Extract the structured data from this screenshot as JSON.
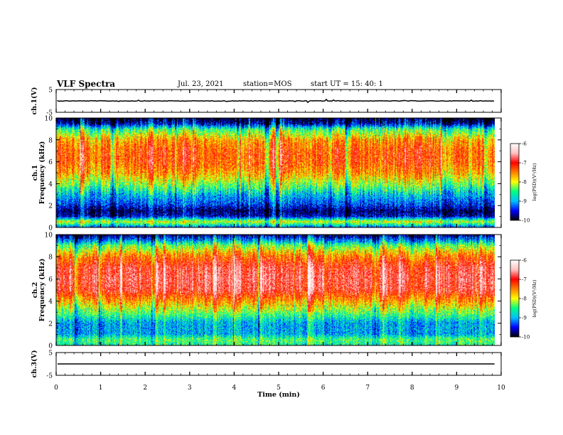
{
  "header": {
    "title": "VLF Spectra",
    "date": "Jul. 23, 2021",
    "station": "station=MOS",
    "start": "start UT = 15: 40: 1"
  },
  "colors": {
    "colormap": [
      "#000000",
      "#0000ff",
      "#00c0ff",
      "#00ff80",
      "#ffff00",
      "#ff8000",
      "#ff0000",
      "#ffc0c0",
      "#ffffff"
    ]
  },
  "chart_data": [
    {
      "type": "line",
      "id": "ch1-waveform",
      "ylabel": "ch.1(V)",
      "ylim": [
        -5,
        5
      ],
      "yticks": [
        "5",
        "-5"
      ],
      "xlim": [
        0,
        10
      ],
      "series": [
        {
          "values_description": "",
          "level": 0
        }
      ]
    },
    {
      "type": "heatmap",
      "id": "ch1-spectrogram",
      "ylabel": "ch.1\nFrequency (kHz)",
      "ylabel_lines": [
        "ch.1",
        "Frequency (kHz)"
      ],
      "ylim": [
        0,
        10
      ],
      "yticks": [
        "0",
        "2",
        "4",
        "6",
        "8",
        "10"
      ],
      "xlim": [
        0,
        10
      ],
      "data_end_min": 9.85,
      "colorbar": {
        "label": "log(PSD)(V²/Hz)",
        "range": [
          -10,
          -6
        ],
        "ticks": [
          "-6",
          "-7",
          "-8",
          "-9",
          "-10"
        ]
      },
      "profile": [
        {
          "f": 0.0,
          "v": -9.2
        },
        {
          "f": 0.5,
          "v": -8.0
        },
        {
          "f": 1.0,
          "v": -9.6
        },
        {
          "f": 1.5,
          "v": -9.8
        },
        {
          "f": 2.0,
          "v": -9.4
        },
        {
          "f": 3.0,
          "v": -8.9
        },
        {
          "f": 4.0,
          "v": -8.2
        },
        {
          "f": 5.0,
          "v": -7.6
        },
        {
          "f": 6.0,
          "v": -7.3
        },
        {
          "f": 7.0,
          "v": -7.3
        },
        {
          "f": 8.0,
          "v": -7.6
        },
        {
          "f": 9.0,
          "v": -8.5
        },
        {
          "f": 9.5,
          "v": -9.6
        },
        {
          "f": 10.0,
          "v": -10.0
        }
      ]
    },
    {
      "type": "heatmap",
      "id": "ch2-spectrogram",
      "ylabel": "ch.2\nFrequency (kHz)",
      "ylabel_lines": [
        "ch.2",
        "Frequency (kHz)"
      ],
      "ylim": [
        0,
        10
      ],
      "yticks": [
        "0",
        "2",
        "4",
        "6",
        "8",
        "10"
      ],
      "xlim": [
        0,
        10
      ],
      "data_end_min": 9.85,
      "colorbar": {
        "label": "log(PSD)(V²/Hz)",
        "range": [
          -10,
          -6
        ],
        "ticks": [
          "-6",
          "-7",
          "-8",
          "-9",
          "-10"
        ]
      },
      "profile": [
        {
          "f": 0.0,
          "v": -8.6
        },
        {
          "f": 0.5,
          "v": -8.4
        },
        {
          "f": 1.0,
          "v": -9.0
        },
        {
          "f": 2.0,
          "v": -9.0
        },
        {
          "f": 3.0,
          "v": -8.3
        },
        {
          "f": 4.0,
          "v": -7.6
        },
        {
          "f": 5.0,
          "v": -6.9
        },
        {
          "f": 6.0,
          "v": -6.8
        },
        {
          "f": 7.0,
          "v": -6.9
        },
        {
          "f": 8.0,
          "v": -7.4
        },
        {
          "f": 9.0,
          "v": -8.3
        },
        {
          "f": 9.5,
          "v": -9.1
        },
        {
          "f": 10.0,
          "v": -9.8
        }
      ]
    },
    {
      "type": "line",
      "id": "ch3-waveform",
      "ylabel": "ch.3(V)",
      "ylim": [
        -5,
        5
      ],
      "yticks": [
        "5",
        "-5"
      ],
      "xlim": [
        0,
        10
      ],
      "series": [
        {
          "level": 0
        }
      ]
    }
  ],
  "xaxis": {
    "xlabel": "Time (min)",
    "ticks": [
      "0",
      "1",
      "2",
      "3",
      "4",
      "5",
      "6",
      "7",
      "8",
      "9",
      "10"
    ]
  }
}
